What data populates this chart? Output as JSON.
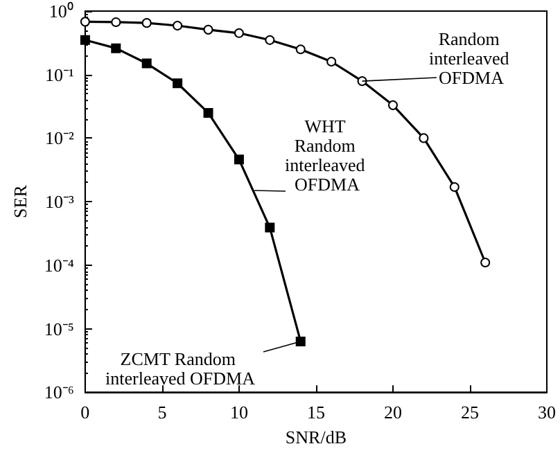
{
  "chart_data": {
    "type": "line",
    "xlabel": "SNR/dB",
    "ylabel": "SER",
    "log": "y",
    "grid": false,
    "legend": false,
    "xlim": [
      0,
      30
    ],
    "xticks": [
      0,
      5,
      10,
      15,
      20,
      25,
      30
    ],
    "ylim": [
      1e-06,
      1
    ],
    "yticks": [
      {
        "value": 1e-06,
        "label": "10⁻⁶"
      },
      {
        "value": 1e-05,
        "label": "10⁻⁵"
      },
      {
        "value": 0.0001,
        "label": "10⁻⁴"
      },
      {
        "value": 0.001,
        "label": "10⁻³"
      },
      {
        "value": 0.01,
        "label": "10⁻²"
      },
      {
        "value": 0.1,
        "label": "10⁻¹"
      },
      {
        "value": 1,
        "label": "10⁰"
      }
    ],
    "line_style": "solid",
    "series": [
      {
        "name": "Random interleaved OFDMA",
        "color": "#000000",
        "marker": "circle",
        "x": [
          0,
          2,
          4,
          6,
          8,
          10,
          12,
          14,
          16,
          18,
          20,
          22,
          24,
          26
        ],
        "values": [
          0.68,
          0.67,
          0.65,
          0.59,
          0.51,
          0.45,
          0.35,
          0.25,
          0.16,
          0.079,
          0.033,
          0.01,
          0.0017,
          0.00011
        ]
      },
      {
        "name": "ZCMT Random interleaved OFDMA",
        "color": "#000000",
        "marker": "square",
        "x": [
          0,
          2,
          4,
          6,
          8,
          10,
          12,
          14
        ],
        "values": [
          0.35,
          0.26,
          0.15,
          0.073,
          0.025,
          0.0046,
          0.00039,
          6.3e-06
        ]
      }
    ],
    "annotations": [
      {
        "text": "WHT Random interleaved OFDMA",
        "x": 11,
        "y": 0.0015
      }
    ]
  }
}
